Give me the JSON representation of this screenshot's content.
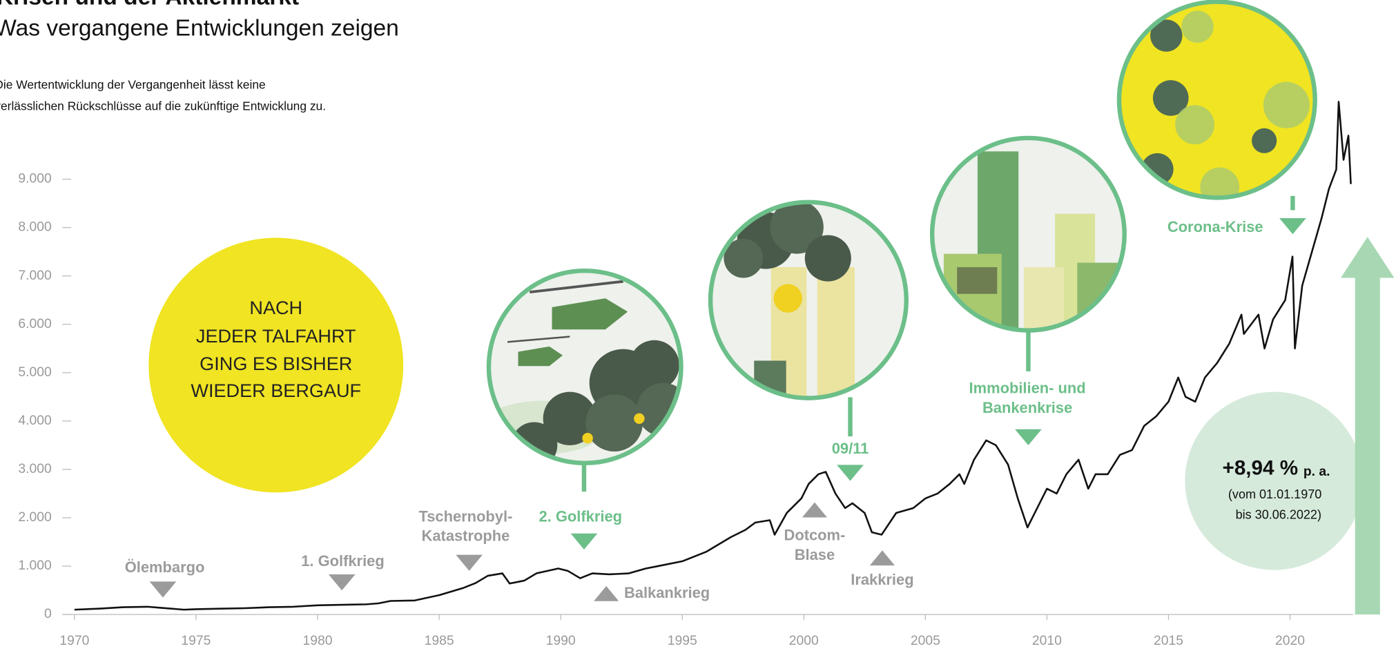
{
  "chart_data": {
    "type": "line",
    "title": "Krisen und der Aktienmarkt",
    "subtitle": "Was vergangene Entwicklungen zeigen",
    "note": [
      "Die Wertentwicklung der Vergangenheit lässt keine",
      "verlässlichen Rückschlüsse auf die zukünftige Entwicklung zu."
    ],
    "message": [
      "NACH",
      "JEDER TALFAHRT",
      "GING ES BISHER",
      "WIEDER BERGAUF"
    ],
    "return_value": "+8,94 %",
    "return_unit": "p. a.",
    "return_period": [
      "(vom 01.01.1970",
      "bis 30.06.2022)"
    ],
    "annotations": [
      {
        "lines": [
          "Ölembargo"
        ],
        "color": "#9b9b9b"
      },
      {
        "lines": [
          "1. Golfkrieg"
        ],
        "color": "#9b9b9b"
      },
      {
        "lines": [
          "Tschernobyl-",
          "Katastrophe"
        ],
        "color": "#9b9b9b"
      },
      {
        "lines": [
          "2. Golfkrieg"
        ],
        "color": "#6cbf89"
      },
      {
        "lines": [
          "Balkankrieg"
        ],
        "color": "#9b9b9b"
      },
      {
        "lines": [
          "Dotcom-",
          "Blase"
        ],
        "color": "#9b9b9b"
      },
      {
        "lines": [
          "09/11"
        ],
        "color": "#6cbf89"
      },
      {
        "lines": [
          "Irakkrieg"
        ],
        "color": "#9b9b9b"
      },
      {
        "lines": [
          "Immobilien- und",
          "Bankenkrise"
        ],
        "color": "#6cbf89"
      },
      {
        "lines": [
          "Corona-Krise"
        ],
        "color": "#6cbf89"
      }
    ],
    "x": [
      1970,
      1971,
      1972,
      1973,
      1973.5,
      1974.5,
      1975,
      1976,
      1977,
      1978,
      1979,
      1980,
      1981,
      1982,
      1982.5,
      1983,
      1984,
      1985,
      1986,
      1986.5,
      1987,
      1987.6,
      1987.9,
      1988.5,
      1989,
      1989.9,
      1990.3,
      1990.8,
      1991.3,
      1992,
      1992.8,
      1993.5,
      1994,
      1995,
      1996,
      1997,
      1997.6,
      1998,
      1998.6,
      1998.8,
      1999.3,
      1999.9,
      2000.2,
      2000.6,
      2000.9,
      2001.3,
      2001.7,
      2002,
      2002.5,
      2002.8,
      2003.2,
      2003.8,
      2004.5,
      2005,
      2005.5,
      2006,
      2006.4,
      2006.6,
      2007,
      2007.5,
      2007.9,
      2008.4,
      2008.8,
      2009.2,
      2009.6,
      2010,
      2010.4,
      2010.8,
      2011.3,
      2011.7,
      2012,
      2012.5,
      2013,
      2013.5,
      2014,
      2014.5,
      2015,
      2015.4,
      2015.7,
      2016.1,
      2016.5,
      2017,
      2017.5,
      2018,
      2018.1,
      2018.7,
      2018.95,
      2019.3,
      2019.8,
      2020.1,
      2020.2,
      2020.5,
      2020.9,
      2021.3,
      2021.6,
      2021.9,
      2022,
      2022.2,
      2022.4,
      2022.5
    ],
    "values": [
      100,
      120,
      150,
      160,
      140,
      100,
      110,
      120,
      130,
      150,
      160,
      190,
      200,
      210,
      230,
      280,
      290,
      400,
      550,
      650,
      800,
      850,
      640,
      700,
      850,
      950,
      900,
      750,
      850,
      830,
      850,
      950,
      1000,
      1100,
      1300,
      1600,
      1750,
      1900,
      1950,
      1650,
      2100,
      2400,
      2700,
      2900,
      2950,
      2500,
      2200,
      2300,
      2100,
      1700,
      1650,
      2100,
      2200,
      2400,
      2500,
      2700,
      2900,
      2700,
      3200,
      3600,
      3500,
      3100,
      2400,
      1800,
      2200,
      2600,
      2500,
      2900,
      3200,
      2600,
      2900,
      2900,
      3300,
      3400,
      3900,
      4100,
      4400,
      4900,
      4500,
      4400,
      4900,
      5200,
      5600,
      6200,
      5800,
      6200,
      5500,
      6100,
      6500,
      7400,
      5500,
      6800,
      7500,
      8200,
      8800,
      9200,
      10600,
      9400,
      9900,
      8900
    ],
    "color": "#111111",
    "xlim": [
      1969.5,
      2022.6
    ],
    "ylim": [
      0,
      10900
    ],
    "xticks": [
      1970,
      1975,
      1980,
      1985,
      1990,
      1995,
      2000,
      2005,
      2010,
      2015,
      2020
    ],
    "yticks": [
      0,
      {
        "value": 1000,
        "label": "1.000"
      },
      {
        "value": 2000,
        "label": "2.000"
      },
      {
        "value": 3000,
        "label": "3.000"
      },
      {
        "value": 4000,
        "label": "4.000"
      },
      {
        "value": 5000,
        "label": "5.000"
      },
      {
        "value": 6000,
        "label": "6.000"
      },
      {
        "value": 7000,
        "label": "7.000"
      },
      {
        "value": 8000,
        "label": "8.000"
      },
      {
        "value": 9000,
        "label": "9.000"
      }
    ]
  }
}
